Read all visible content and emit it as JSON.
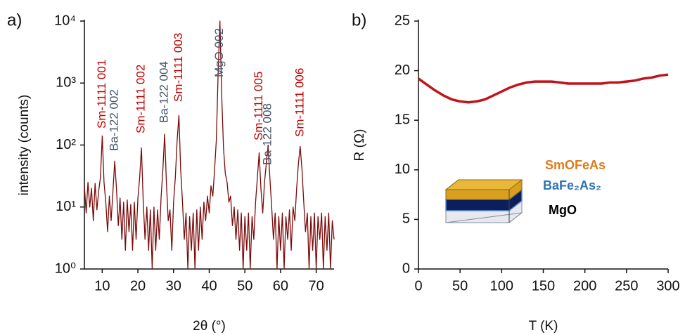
{
  "chart_data": [
    {
      "type": "line",
      "panel_label": "a)",
      "y_label": "intensity (counts)",
      "x_label": "2θ (°)",
      "log_y": true,
      "xlim": [
        5,
        75
      ],
      "ylim": [
        1,
        10000
      ],
      "xticks": [
        10,
        20,
        30,
        40,
        50,
        60,
        70
      ],
      "yticks": [
        {
          "value": 1,
          "label": "10⁰"
        },
        {
          "value": 10,
          "label": "10¹"
        },
        {
          "value": 100,
          "label": "10²"
        },
        {
          "value": 1000,
          "label": "10³"
        },
        {
          "value": 10000,
          "label": "10⁴"
        }
      ],
      "x": [
        5,
        5.5,
        6,
        6.5,
        7,
        7.5,
        8,
        8.5,
        9,
        9.5,
        10,
        10.5,
        11,
        11.5,
        12,
        12.5,
        13,
        13.5,
        14,
        14.5,
        15,
        15.5,
        16,
        16.5,
        17,
        17.5,
        18,
        18.5,
        19,
        19.5,
        20,
        20.5,
        21,
        21.5,
        22,
        22.5,
        23,
        23.5,
        24,
        24.5,
        25,
        25.5,
        26,
        26.5,
        27,
        27.5,
        28,
        28.5,
        29,
        29.5,
        30,
        30.5,
        31,
        31.5,
        32,
        32.5,
        33,
        33.5,
        34,
        34.5,
        35,
        35.5,
        36,
        36.5,
        37,
        37.5,
        38,
        38.5,
        39,
        39.5,
        40,
        40.5,
        41,
        41.5,
        42,
        42.5,
        43,
        43.5,
        44,
        44.5,
        45,
        45.5,
        46,
        46.5,
        47,
        47.5,
        48,
        48.5,
        49,
        49.5,
        50,
        50.5,
        51,
        51.5,
        52,
        52.5,
        53,
        53.5,
        54,
        54.5,
        55,
        55.5,
        56,
        56.5,
        57,
        57.5,
        58,
        58.5,
        59,
        59.5,
        60,
        60.5,
        61,
        61.5,
        62,
        62.5,
        63,
        63.5,
        64,
        64.5,
        65,
        65.5,
        66,
        66.5,
        67,
        67.5,
        68,
        68.5,
        69,
        69.5,
        70,
        70.5,
        71,
        71.5,
        72,
        72.5,
        73,
        73.5,
        74,
        74.5,
        75
      ],
      "series": [
        {
          "color": "#7b0a0a",
          "values": [
            22,
            8,
            25,
            10,
            20,
            6,
            24,
            9,
            18,
            30,
            140,
            25,
            12,
            4,
            15,
            6,
            18,
            55,
            20,
            5,
            14,
            3,
            12,
            2,
            13,
            4,
            11,
            2,
            12,
            3,
            14,
            30,
            90,
            12,
            3,
            10,
            2,
            9,
            1,
            10,
            2,
            9,
            3,
            14,
            40,
            150,
            25,
            6,
            9,
            2,
            12,
            30,
            120,
            300,
            40,
            12,
            3,
            8,
            1,
            7,
            2,
            8,
            1,
            9,
            2,
            10,
            3,
            12,
            6,
            15,
            8,
            22,
            15,
            40,
            120,
            1500,
            10000,
            600,
            90,
            35,
            25,
            12,
            15,
            5,
            10,
            3,
            9,
            2,
            8,
            1,
            7,
            2,
            8,
            1,
            7,
            3,
            12,
            30,
            75,
            20,
            8,
            25,
            50,
            100,
            30,
            10,
            3,
            8,
            1,
            7,
            2,
            8,
            1,
            7,
            3,
            9,
            2,
            10,
            6,
            20,
            50,
            95,
            40,
            12,
            4,
            8,
            1,
            7,
            2,
            8,
            1,
            7,
            3,
            8,
            1,
            7,
            2,
            8,
            1,
            6,
            3
          ]
        }
      ],
      "annotations": [
        {
          "text": "Sm-1111 001",
          "x": 10,
          "color": "#c00000"
        },
        {
          "text": "Ba-122 002",
          "x": 13.5,
          "color": "#44546a"
        },
        {
          "text": "Sm-1111 002",
          "x": 21,
          "color": "#c00000"
        },
        {
          "text": "Ba-122 004",
          "x": 27.5,
          "color": "#44546a"
        },
        {
          "text": "Sm-1111 003",
          "x": 31.5,
          "color": "#c00000"
        },
        {
          "text": "MgO 002",
          "x": 43,
          "color": "#44546a"
        },
        {
          "text": "Sm-1111 005",
          "x": 54,
          "color": "#c00000"
        },
        {
          "text": "Ba-122 008",
          "x": 56.5,
          "color": "#44546a"
        },
        {
          "text": "Sm-1111 006",
          "x": 65.5,
          "color": "#c00000"
        }
      ]
    },
    {
      "type": "line",
      "panel_label": "b)",
      "y_label": "R (Ω)",
      "x_label": "T (K)",
      "xlim": [
        0,
        300
      ],
      "ylim": [
        0,
        25
      ],
      "xticks": [
        0,
        50,
        100,
        150,
        200,
        250,
        300
      ],
      "yticks": [
        0,
        5,
        10,
        15,
        20,
        25
      ],
      "x": [
        0,
        10,
        20,
        30,
        40,
        50,
        60,
        70,
        80,
        90,
        100,
        110,
        120,
        130,
        140,
        150,
        160,
        170,
        180,
        190,
        200,
        210,
        220,
        230,
        240,
        250,
        260,
        270,
        280,
        290,
        300
      ],
      "series": [
        {
          "color": "#c0141a",
          "values": [
            19.2,
            18.6,
            18.0,
            17.5,
            17.1,
            16.9,
            16.8,
            16.9,
            17.1,
            17.5,
            17.9,
            18.3,
            18.6,
            18.8,
            18.9,
            18.9,
            18.9,
            18.8,
            18.7,
            18.7,
            18.7,
            18.7,
            18.7,
            18.8,
            18.8,
            18.9,
            19.0,
            19.2,
            19.3,
            19.5,
            19.6
          ]
        }
      ],
      "inset_labels": [
        {
          "text": "SmOFeAs",
          "color": "#e07b1a"
        },
        {
          "text": "BaFe₂As₂",
          "color": "#2e75b6"
        },
        {
          "text": "MgO",
          "color": "#000000"
        }
      ]
    }
  ]
}
